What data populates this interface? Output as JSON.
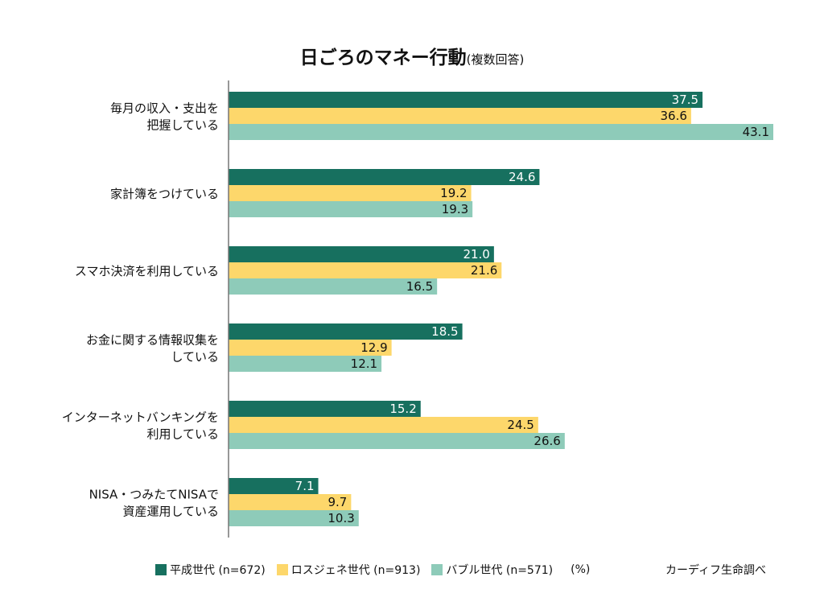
{
  "chart_data": {
    "type": "bar",
    "orientation": "horizontal",
    "title": "日ごろのマネー行動",
    "subtitle": "(複数回答)",
    "unit": "(%)",
    "source": "カーディフ生命調べ",
    "categories": [
      [
        "毎月の収入・支出を",
        "把握している"
      ],
      [
        "家計簿をつけている"
      ],
      [
        "スマホ決済を利用している"
      ],
      [
        "お金に関する情報収集を",
        "している"
      ],
      [
        "インターネットバンキングを",
        "利用している"
      ],
      [
        "NISA・つみたてNISAで",
        "資産運用している"
      ]
    ],
    "series": [
      {
        "name": "平成世代 (n=672)",
        "color": "#17705f",
        "label_color": "#ffffff",
        "values": [
          37.5,
          24.6,
          21.0,
          18.5,
          15.2,
          7.1
        ]
      },
      {
        "name": "ロスジェネ世代 (n=913)",
        "color": "#fdd76b",
        "label_color": "#111111",
        "values": [
          36.6,
          19.2,
          21.6,
          12.9,
          24.5,
          9.7
        ]
      },
      {
        "name": "バブル世代 (n=571)",
        "color": "#8ecbb9",
        "label_color": "#111111",
        "values": [
          43.1,
          19.3,
          16.5,
          12.1,
          26.6,
          10.3
        ]
      }
    ],
    "xlim": [
      0,
      43.1
    ],
    "grid": false,
    "legend_position": "bottom"
  }
}
